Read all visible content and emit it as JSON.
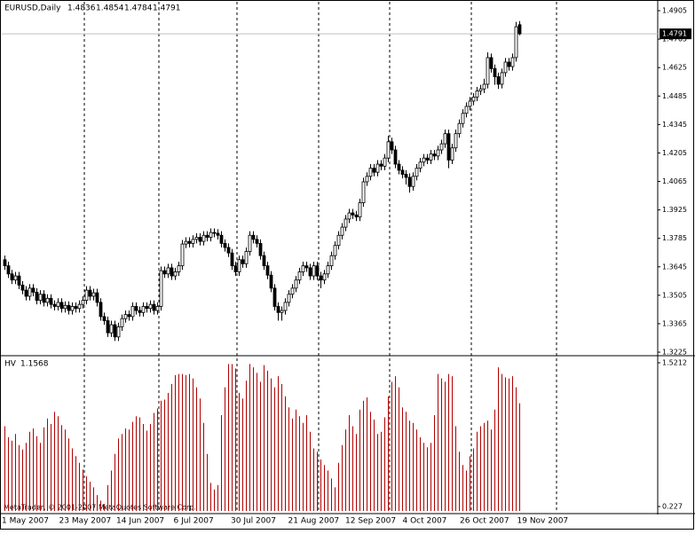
{
  "chart_data": [
    {
      "type": "candlestick",
      "title": "EURUSD,Daily",
      "ylim": [
        1.3212,
        1.494
      ],
      "yticks": [
        1.4905,
        1.4765,
        1.4625,
        1.4485,
        1.4345,
        1.4205,
        1.4065,
        1.3925,
        1.3785,
        1.3645,
        1.3505,
        1.3365,
        1.3225
      ],
      "x_labels": [
        "1 May 2007",
        "23 May 2007",
        "14 Jun 2007",
        "6 Jul 2007",
        "30 Jul 2007",
        "21 Aug 2007",
        "12 Sep 2007",
        "4 Oct 2007",
        "26 Oct 2007",
        "19 Nov 2007"
      ],
      "candles": [
        [
          1.368,
          1.37,
          1.363,
          1.365
        ],
        [
          1.365,
          1.367,
          1.359,
          1.361
        ],
        [
          1.361,
          1.363,
          1.356,
          1.358
        ],
        [
          1.358,
          1.362,
          1.356,
          1.36
        ],
        [
          1.36,
          1.362,
          1.3535,
          1.3555
        ],
        [
          1.3555,
          1.3575,
          1.351,
          1.353
        ],
        [
          1.353,
          1.355,
          1.348,
          1.35
        ],
        [
          1.35,
          1.356,
          1.348,
          1.354
        ],
        [
          1.354,
          1.356,
          1.35,
          1.352
        ],
        [
          1.352,
          1.354,
          1.346,
          1.348
        ],
        [
          1.348,
          1.353,
          1.346,
          1.351
        ],
        [
          1.351,
          1.353,
          1.345,
          1.347
        ],
        [
          1.347,
          1.351,
          1.345,
          1.349
        ],
        [
          1.349,
          1.351,
          1.344,
          1.346
        ],
        [
          1.346,
          1.348,
          1.343,
          1.345
        ],
        [
          1.345,
          1.349,
          1.343,
          1.347
        ],
        [
          1.347,
          1.349,
          1.342,
          1.344
        ],
        [
          1.344,
          1.3475,
          1.342,
          1.3455
        ],
        [
          1.3455,
          1.3475,
          1.341,
          1.343
        ],
        [
          1.343,
          1.347,
          1.341,
          1.345
        ],
        [
          1.345,
          1.347,
          1.342,
          1.344
        ],
        [
          1.344,
          1.348,
          1.342,
          1.346
        ],
        [
          1.346,
          1.35,
          1.344,
          1.348
        ],
        [
          1.348,
          1.355,
          1.346,
          1.353
        ],
        [
          1.353,
          1.355,
          1.348,
          1.35
        ],
        [
          1.35,
          1.3537,
          1.348,
          1.3517
        ],
        [
          1.3517,
          1.3537,
          1.345,
          1.347
        ],
        [
          1.347,
          1.349,
          1.338,
          1.34
        ],
        [
          1.34,
          1.342,
          1.336,
          1.338
        ],
        [
          1.338,
          1.34,
          1.33,
          1.332
        ],
        [
          1.332,
          1.338,
          1.33,
          1.336
        ],
        [
          1.336,
          1.338,
          1.328,
          1.33
        ],
        [
          1.33,
          1.337,
          1.328,
          1.335
        ],
        [
          1.335,
          1.341,
          1.333,
          1.339
        ],
        [
          1.339,
          1.343,
          1.337,
          1.341
        ],
        [
          1.341,
          1.343,
          1.338,
          1.34
        ],
        [
          1.34,
          1.347,
          1.338,
          1.345
        ],
        [
          1.345,
          1.347,
          1.341,
          1.343
        ],
        [
          1.343,
          1.345,
          1.34,
          1.342
        ],
        [
          1.342,
          1.347,
          1.34,
          1.345
        ],
        [
          1.345,
          1.347,
          1.342,
          1.344
        ],
        [
          1.344,
          1.348,
          1.342,
          1.346
        ],
        [
          1.346,
          1.348,
          1.341,
          1.343
        ],
        [
          1.343,
          1.347,
          1.341,
          1.345
        ],
        [
          1.345,
          1.3646,
          1.343,
          1.3626
        ],
        [
          1.3626,
          1.3646,
          1.359,
          1.361
        ],
        [
          1.361,
          1.366,
          1.359,
          1.364
        ],
        [
          1.364,
          1.366,
          1.358,
          1.36
        ],
        [
          1.36,
          1.364,
          1.358,
          1.362
        ],
        [
          1.362,
          1.367,
          1.36,
          1.365
        ],
        [
          1.365,
          1.3777,
          1.363,
          1.3757
        ],
        [
          1.3757,
          1.379,
          1.3737,
          1.377
        ],
        [
          1.377,
          1.379,
          1.374,
          1.376
        ],
        [
          1.376,
          1.38,
          1.374,
          1.378
        ],
        [
          1.378,
          1.381,
          1.376,
          1.379
        ],
        [
          1.379,
          1.381,
          1.375,
          1.377
        ],
        [
          1.377,
          1.382,
          1.375,
          1.38
        ],
        [
          1.38,
          1.382,
          1.377,
          1.379
        ],
        [
          1.379,
          1.3834,
          1.377,
          1.3814
        ],
        [
          1.3814,
          1.3834,
          1.379,
          1.381
        ],
        [
          1.381,
          1.383,
          1.378,
          1.38
        ],
        [
          1.38,
          1.382,
          1.374,
          1.376
        ],
        [
          1.376,
          1.378,
          1.372,
          1.374
        ],
        [
          1.374,
          1.376,
          1.3693,
          1.3713
        ],
        [
          1.3713,
          1.3733,
          1.363,
          1.365
        ],
        [
          1.365,
          1.367,
          1.36,
          1.362
        ],
        [
          1.362,
          1.37,
          1.36,
          1.368
        ],
        [
          1.368,
          1.37,
          1.364,
          1.366
        ],
        [
          1.366,
          1.374,
          1.364,
          1.372
        ],
        [
          1.372,
          1.382,
          1.37,
          1.38
        ],
        [
          1.38,
          1.382,
          1.376,
          1.378
        ],
        [
          1.378,
          1.38,
          1.374,
          1.376
        ],
        [
          1.376,
          1.378,
          1.368,
          1.37
        ],
        [
          1.37,
          1.372,
          1.363,
          1.365
        ],
        [
          1.365,
          1.367,
          1.3584,
          1.3604
        ],
        [
          1.3604,
          1.3624,
          1.352,
          1.354
        ],
        [
          1.354,
          1.356,
          1.343,
          1.345
        ],
        [
          1.345,
          1.347,
          1.338,
          1.342
        ],
        [
          1.342,
          1.345,
          1.338,
          1.343
        ],
        [
          1.343,
          1.349,
          1.341,
          1.347
        ],
        [
          1.347,
          1.353,
          1.345,
          1.351
        ],
        [
          1.351,
          1.356,
          1.349,
          1.354
        ],
        [
          1.354,
          1.36,
          1.352,
          1.358
        ],
        [
          1.358,
          1.364,
          1.356,
          1.362
        ],
        [
          1.362,
          1.367,
          1.36,
          1.365
        ],
        [
          1.365,
          1.367,
          1.362,
          1.364
        ],
        [
          1.364,
          1.366,
          1.358,
          1.36
        ],
        [
          1.36,
          1.367,
          1.358,
          1.365
        ],
        [
          1.365,
          1.367,
          1.358,
          1.36
        ],
        [
          1.36,
          1.362,
          1.354,
          1.358
        ],
        [
          1.358,
          1.363,
          1.356,
          1.361
        ],
        [
          1.361,
          1.367,
          1.359,
          1.365
        ],
        [
          1.365,
          1.372,
          1.363,
          1.37
        ],
        [
          1.37,
          1.377,
          1.368,
          1.375
        ],
        [
          1.375,
          1.382,
          1.373,
          1.38
        ],
        [
          1.38,
          1.386,
          1.378,
          1.384
        ],
        [
          1.384,
          1.39,
          1.382,
          1.388
        ],
        [
          1.388,
          1.393,
          1.386,
          1.391
        ],
        [
          1.391,
          1.393,
          1.388,
          1.39
        ],
        [
          1.39,
          1.392,
          1.387,
          1.389
        ],
        [
          1.389,
          1.398,
          1.387,
          1.396
        ],
        [
          1.396,
          1.4083,
          1.394,
          1.4063
        ],
        [
          1.4063,
          1.411,
          1.4043,
          1.409
        ],
        [
          1.409,
          1.415,
          1.407,
          1.413
        ],
        [
          1.413,
          1.415,
          1.409,
          1.411
        ],
        [
          1.411,
          1.417,
          1.409,
          1.415
        ],
        [
          1.415,
          1.417,
          1.412,
          1.414
        ],
        [
          1.414,
          1.42,
          1.412,
          1.418
        ],
        [
          1.418,
          1.429,
          1.416,
          1.426
        ],
        [
          1.426,
          1.428,
          1.42,
          1.422
        ],
        [
          1.422,
          1.424,
          1.413,
          1.415
        ],
        [
          1.415,
          1.417,
          1.41,
          1.412
        ],
        [
          1.412,
          1.414,
          1.408,
          1.41
        ],
        [
          1.41,
          1.412,
          1.405,
          1.4085
        ],
        [
          1.4085,
          1.4105,
          1.401,
          1.404
        ],
        [
          1.404,
          1.411,
          1.402,
          1.409
        ],
        [
          1.409,
          1.415,
          1.407,
          1.413
        ],
        [
          1.413,
          1.418,
          1.411,
          1.416
        ],
        [
          1.416,
          1.42,
          1.414,
          1.418
        ],
        [
          1.418,
          1.42,
          1.415,
          1.417
        ],
        [
          1.417,
          1.422,
          1.415,
          1.42
        ],
        [
          1.42,
          1.422,
          1.417,
          1.419
        ],
        [
          1.419,
          1.424,
          1.417,
          1.422
        ],
        [
          1.422,
          1.427,
          1.42,
          1.425
        ],
        [
          1.425,
          1.432,
          1.423,
          1.43
        ],
        [
          1.43,
          1.432,
          1.413,
          1.417
        ],
        [
          1.417,
          1.425,
          1.415,
          1.423
        ],
        [
          1.423,
          1.432,
          1.421,
          1.43
        ],
        [
          1.43,
          1.437,
          1.428,
          1.435
        ],
        [
          1.435,
          1.442,
          1.433,
          1.44
        ],
        [
          1.44,
          1.4454,
          1.438,
          1.4434
        ],
        [
          1.4434,
          1.448,
          1.4414,
          1.446
        ],
        [
          1.446,
          1.45,
          1.444,
          1.448
        ],
        [
          1.448,
          1.453,
          1.446,
          1.451
        ],
        [
          1.451,
          1.454,
          1.449,
          1.452
        ],
        [
          1.452,
          1.457,
          1.45,
          1.4543
        ],
        [
          1.4543,
          1.47,
          1.4523,
          1.4674
        ],
        [
          1.4674,
          1.4694,
          1.46,
          1.462
        ],
        [
          1.462,
          1.464,
          1.454,
          1.458
        ],
        [
          1.458,
          1.46,
          1.452,
          1.4543
        ],
        [
          1.4543,
          1.462,
          1.4523,
          1.46
        ],
        [
          1.46,
          1.4672,
          1.458,
          1.4652
        ],
        [
          1.4652,
          1.4672,
          1.461,
          1.463
        ],
        [
          1.463,
          1.4694,
          1.461,
          1.4674
        ],
        [
          1.4674,
          1.485,
          1.4654,
          1.4826
        ],
        [
          1.4836,
          1.4854,
          1.4784,
          1.4791
        ]
      ]
    },
    {
      "type": "bar",
      "title": "HV",
      "color": "#b00000",
      "ylim": [
        0.187,
        1.569
      ],
      "yticks": [
        1.5212,
        0.227
      ],
      "values": [
        0.95,
        0.85,
        0.82,
        0.88,
        0.78,
        0.74,
        0.8,
        0.9,
        0.93,
        0.86,
        0.8,
        0.94,
        1.02,
        0.97,
        1.08,
        1.04,
        0.96,
        0.92,
        0.84,
        0.75,
        0.68,
        0.62,
        0.56,
        0.5,
        0.45,
        0.4,
        0.33,
        0.28,
        0.25,
        0.42,
        0.55,
        0.7,
        0.84,
        0.88,
        0.93,
        0.92,
        0.99,
        1.04,
        1.03,
        0.97,
        0.91,
        0.97,
        1.07,
        1.11,
        1.18,
        1.19,
        1.25,
        1.33,
        1.41,
        1.42,
        1.42,
        1.41,
        1.42,
        1.38,
        1.3,
        1.2,
        0.98,
        0.7,
        0.44,
        0.38,
        0.42,
        1.05,
        1.3,
        1.51,
        1.51,
        1.47,
        1.25,
        1.2,
        1.36,
        1.51,
        1.48,
        1.43,
        1.35,
        1.5,
        1.45,
        1.38,
        1.3,
        1.4,
        1.33,
        1.22,
        1.12,
        1.02,
        1.1,
        1.04,
        0.98,
        1.05,
        0.9,
        0.75,
        0.72,
        0.65,
        0.6,
        0.55,
        0.48,
        0.4,
        0.62,
        0.78,
        0.92,
        1.05,
        0.95,
        0.88,
        1.1,
        1.18,
        1.21,
        1.08,
        1.01,
        0.88,
        0.9,
        1.03,
        1.22,
        1.35,
        1.4,
        1.3,
        1.12,
        1.08,
        1.0,
        0.98,
        0.92,
        0.85,
        0.8,
        0.76,
        0.8,
        1.05,
        1.42,
        1.38,
        1.35,
        1.42,
        1.4,
        0.95,
        0.72,
        0.6,
        0.55,
        0.68,
        0.75,
        0.9,
        0.95,
        0.98,
        1.0,
        0.92,
        1.1,
        1.48,
        1.42,
        1.39,
        1.38,
        1.4,
        1.3,
        1.1568
      ]
    }
  ],
  "watermark": "MetaTrader, © 2001-2007 MetaQuotes Software Corp."
}
